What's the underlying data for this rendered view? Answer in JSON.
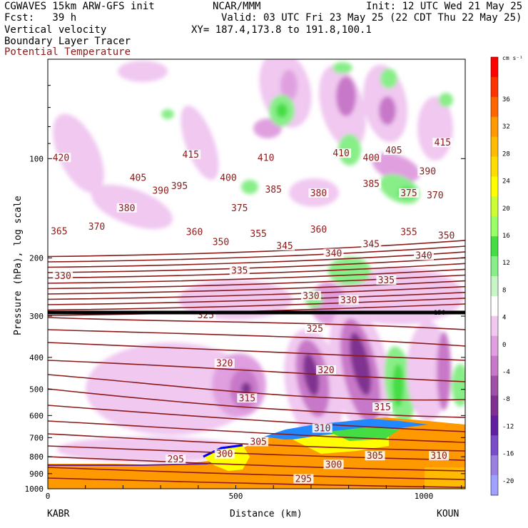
{
  "header": {
    "line1_left": "CGWAVES 15km ARW-GFS init",
    "line1_center": "NCAR/MMM",
    "line1_right": "Init: 12 UTC Wed 21 May 25",
    "line2_left": "Fcst:   39 h",
    "line2_right": "Valid: 03 UTC Fri 23 May 25 (22 CDT Thu 22 May 25)",
    "line3_left": "Vertical velocity",
    "line3_right": "XY= 187.4,173.8 to 191.8,100.1",
    "line4_left": "Boundary Layer Tracer",
    "line5_left": "Potential Temperature"
  },
  "chart_data": {
    "type": "heatmap",
    "ylabel": "Pressure (hPa), log scale",
    "xlabel": "Distance (km)",
    "x_endpoints": {
      "left": "KABR",
      "right": "KOUN"
    },
    "xlim": [
      0,
      1110
    ],
    "ylim": [
      1000,
      50
    ],
    "y_scale": "log",
    "x_ticks": [
      0,
      500,
      1000
    ],
    "y_ticks": [
      100,
      200,
      300,
      400,
      500,
      600,
      700,
      800,
      900,
      1000
    ],
    "colorbar": {
      "unit": "cm s⁻¹",
      "labels": [
        "36",
        "32",
        "28",
        "24",
        "20",
        "16",
        "12",
        "8",
        "4",
        "0",
        "-4",
        "-8",
        "-12",
        "-16",
        "-20"
      ],
      "colors": [
        "#ff0000",
        "#ff3300",
        "#ff6600",
        "#ff9900",
        "#ffbb00",
        "#ffdd00",
        "#ffff00",
        "#ccff33",
        "#99ff66",
        "#44dd44",
        "#88ee88",
        "#c8f5c8",
        "#ffffff",
        "#f0c8f0",
        "#e0a0e0",
        "#c878c8",
        "#a050a8",
        "#803090",
        "#6020a0",
        "#7a4cc8",
        "#9a80e0",
        "#a0a0ff"
      ]
    },
    "tropopause_label": "150",
    "theta_contours": [
      {
        "value": "420",
        "x": 35,
        "p": 100
      },
      {
        "value": "415",
        "x": 380,
        "p": 98
      },
      {
        "value": "410",
        "x": 580,
        "p": 100
      },
      {
        "value": "410",
        "x": 780,
        "p": 97
      },
      {
        "value": "400",
        "x": 860,
        "p": 100
      },
      {
        "value": "405",
        "x": 920,
        "p": 95
      },
      {
        "value": "415",
        "x": 1050,
        "p": 90
      },
      {
        "value": "405",
        "x": 240,
        "p": 115
      },
      {
        "value": "400",
        "x": 480,
        "p": 115
      },
      {
        "value": "390",
        "x": 1010,
        "p": 110
      },
      {
        "value": "390",
        "x": 300,
        "p": 126
      },
      {
        "value": "395",
        "x": 350,
        "p": 122
      },
      {
        "value": "385",
        "x": 600,
        "p": 125
      },
      {
        "value": "380",
        "x": 720,
        "p": 128
      },
      {
        "value": "385",
        "x": 860,
        "p": 120
      },
      {
        "value": "375",
        "x": 960,
        "p": 128
      },
      {
        "value": "370",
        "x": 1030,
        "p": 130
      },
      {
        "value": "380",
        "x": 210,
        "p": 142
      },
      {
        "value": "375",
        "x": 510,
        "p": 142
      },
      {
        "value": "365",
        "x": 30,
        "p": 167
      },
      {
        "value": "370",
        "x": 130,
        "p": 162
      },
      {
        "value": "360",
        "x": 390,
        "p": 168
      },
      {
        "value": "355",
        "x": 560,
        "p": 170
      },
      {
        "value": "360",
        "x": 720,
        "p": 165
      },
      {
        "value": "355",
        "x": 960,
        "p": 168
      },
      {
        "value": "350",
        "x": 1060,
        "p": 172
      },
      {
        "value": "350",
        "x": 460,
        "p": 180
      },
      {
        "value": "345",
        "x": 630,
        "p": 185
      },
      {
        "value": "345",
        "x": 860,
        "p": 183
      },
      {
        "value": "340",
        "x": 760,
        "p": 195
      },
      {
        "value": "340",
        "x": 1000,
        "p": 198
      },
      {
        "value": "330",
        "x": 40,
        "p": 228
      },
      {
        "value": "335",
        "x": 510,
        "p": 220
      },
      {
        "value": "335",
        "x": 900,
        "p": 235
      },
      {
        "value": "330",
        "x": 700,
        "p": 262
      },
      {
        "value": "330",
        "x": 800,
        "p": 270
      },
      {
        "value": "325",
        "x": 420,
        "p": 300
      },
      {
        "value": "325",
        "x": 710,
        "p": 330
      },
      {
        "value": "320",
        "x": 470,
        "p": 420
      },
      {
        "value": "320",
        "x": 740,
        "p": 440
      },
      {
        "value": "315",
        "x": 530,
        "p": 535
      },
      {
        "value": "315",
        "x": 890,
        "p": 570
      },
      {
        "value": "310",
        "x": 730,
        "p": 660
      },
      {
        "value": "305",
        "x": 560,
        "p": 725
      },
      {
        "value": "305",
        "x": 870,
        "p": 800
      },
      {
        "value": "300",
        "x": 470,
        "p": 790
      },
      {
        "value": "300",
        "x": 760,
        "p": 850
      },
      {
        "value": "310",
        "x": 1040,
        "p": 800
      },
      {
        "value": "295",
        "x": 340,
        "p": 820
      },
      {
        "value": "295",
        "x": 680,
        "p": 940
      }
    ]
  }
}
